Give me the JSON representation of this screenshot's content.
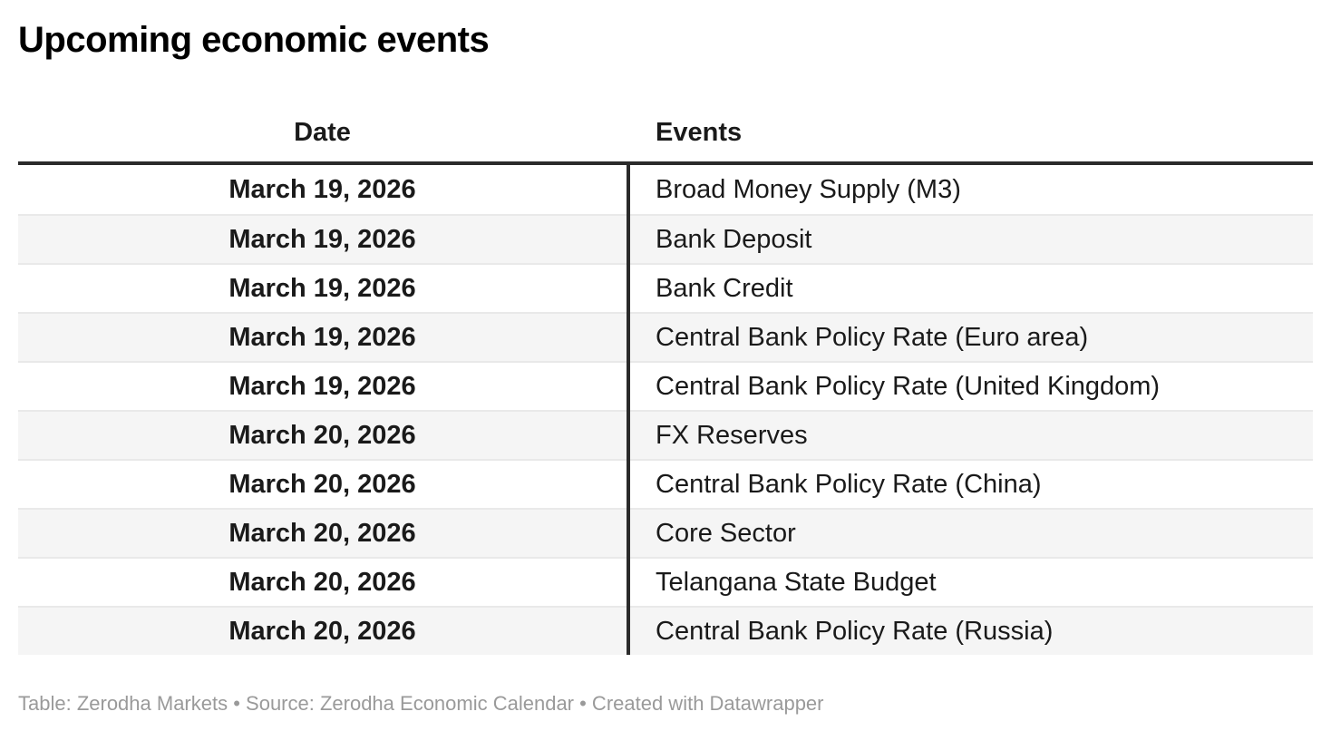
{
  "title": "Upcoming economic events",
  "chart_data": {
    "type": "table",
    "title": "Upcoming economic events",
    "columns": [
      "Date",
      "Events"
    ],
    "rows": [
      [
        "March 19, 2026",
        "Broad Money Supply (M3)"
      ],
      [
        "March 19, 2026",
        "Bank Deposit"
      ],
      [
        "March 19, 2026",
        "Bank Credit"
      ],
      [
        "March 19, 2026",
        "Central Bank Policy Rate (Euro area)"
      ],
      [
        "March 19, 2026",
        "Central Bank Policy Rate (United Kingdom)"
      ],
      [
        "March 20, 2026",
        "FX Reserves"
      ],
      [
        "March 20, 2026",
        "Central Bank Policy Rate (China)"
      ],
      [
        "March 20, 2026",
        "Core Sector"
      ],
      [
        "March 20, 2026",
        "Telangana State Budget"
      ],
      [
        "March 20, 2026",
        "Central Bank Policy Rate (Russia)"
      ]
    ],
    "layout": {
      "date_column_align": "center",
      "events_column_align": "left",
      "zebra_striping": true,
      "legend_position": "none"
    }
  },
  "footer": {
    "credits": "Table: Zerodha Markets • Source: Zerodha Economic Calendar • Created with Datawrapper"
  },
  "colors": {
    "title_text": "#000000",
    "body_text": "#1a1a1a",
    "header_rule": "#2b2b2b",
    "column_divider": "#2b2b2b",
    "row_stripe": "#f5f5f5",
    "row_separator": "#e9e9e9",
    "footer_text": "#9a9a9a",
    "background": "#ffffff"
  }
}
